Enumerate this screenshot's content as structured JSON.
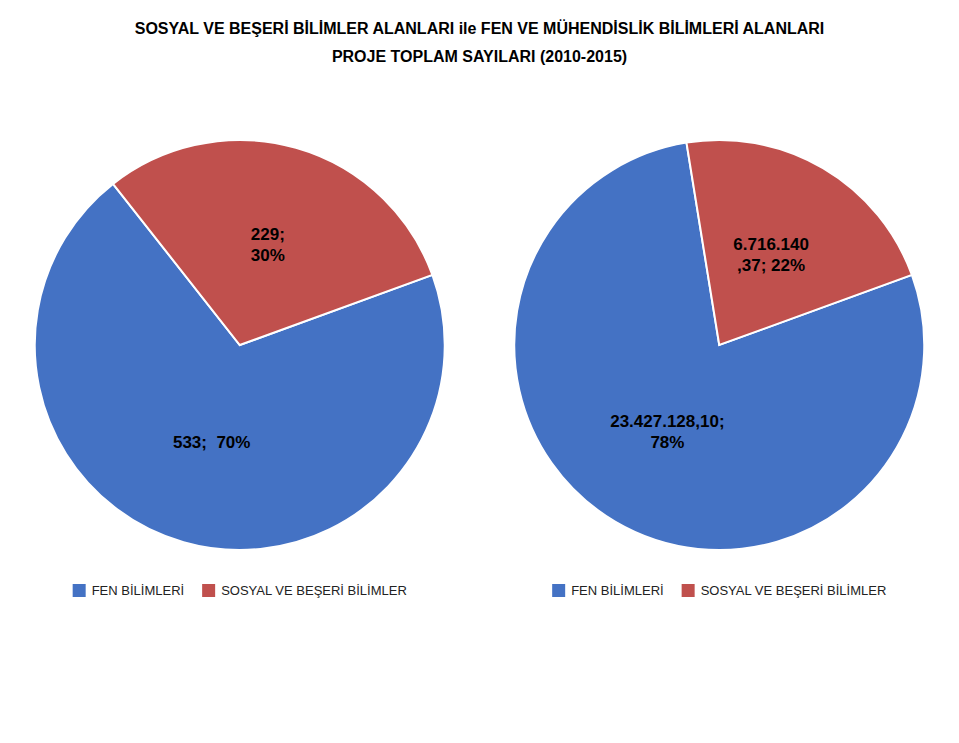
{
  "chart_data": [
    {
      "type": "pie",
      "title": "SOSYAL VE BEŞERİ BİLİMLER ALANLARI ile FEN VE MÜHENDİSLİK BİLİMLERİ ALANLARI",
      "subtitle": "PROJE TOPLAM SAYILARI (2010-2015)",
      "categories": [
        "FEN BİLİMLERİ",
        "SOSYAL VE BEŞERİ BİLİMLER"
      ],
      "values": [
        533,
        229
      ],
      "value_labels": [
        "533;  70%",
        "229;\n30%"
      ],
      "colors": [
        "#4472C4",
        "#C0504D"
      ],
      "data_labels": true,
      "legend": "bottom"
    },
    {
      "type": "pie",
      "categories": [
        "FEN BİLİMLERİ",
        "SOSYAL VE BEŞERİ BİLİMLER"
      ],
      "values": [
        78,
        22
      ],
      "value_labels": [
        "23.427.128,10;\n78%",
        "6.716.140\n,37; 22%"
      ],
      "colors": [
        "#4472C4",
        "#C0504D"
      ],
      "data_labels": true,
      "legend": "bottom"
    }
  ]
}
